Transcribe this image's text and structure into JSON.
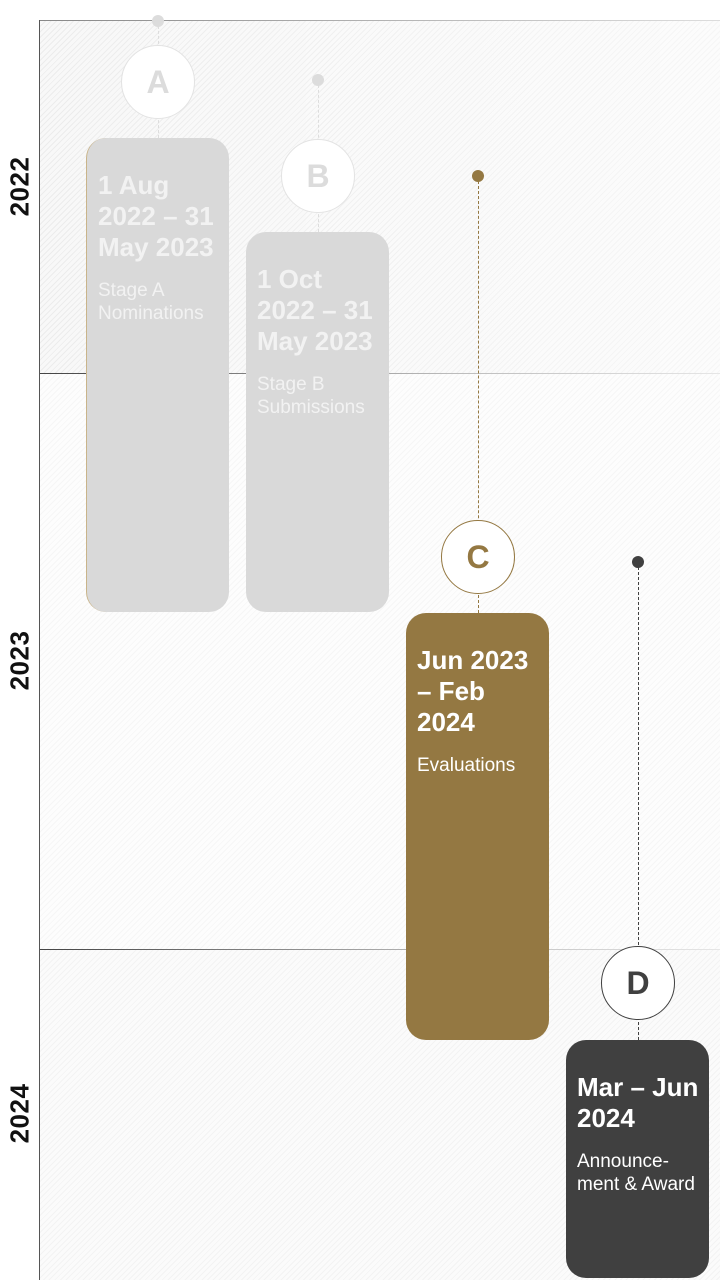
{
  "years": [
    "2022",
    "2023",
    "2024"
  ],
  "milestones": [
    {
      "letter": "A",
      "date": "1 Aug 2022 – 31 May 2023",
      "description": "Stage A Nominations",
      "state": "past",
      "color": "#d9d9d9"
    },
    {
      "letter": "B",
      "date": "1 Oct 2022 – 31 May 2023",
      "description": "Stage B Submissions",
      "state": "past",
      "color": "#d9d9d9"
    },
    {
      "letter": "C",
      "date": "Jun 2023 – Feb 2024",
      "description": "Evaluations",
      "state": "current",
      "color": "#947842"
    },
    {
      "letter": "D",
      "date": "Mar – Jun 2024",
      "description": "Announce-ment & Award",
      "state": "upcoming",
      "color": "#404040"
    }
  ]
}
